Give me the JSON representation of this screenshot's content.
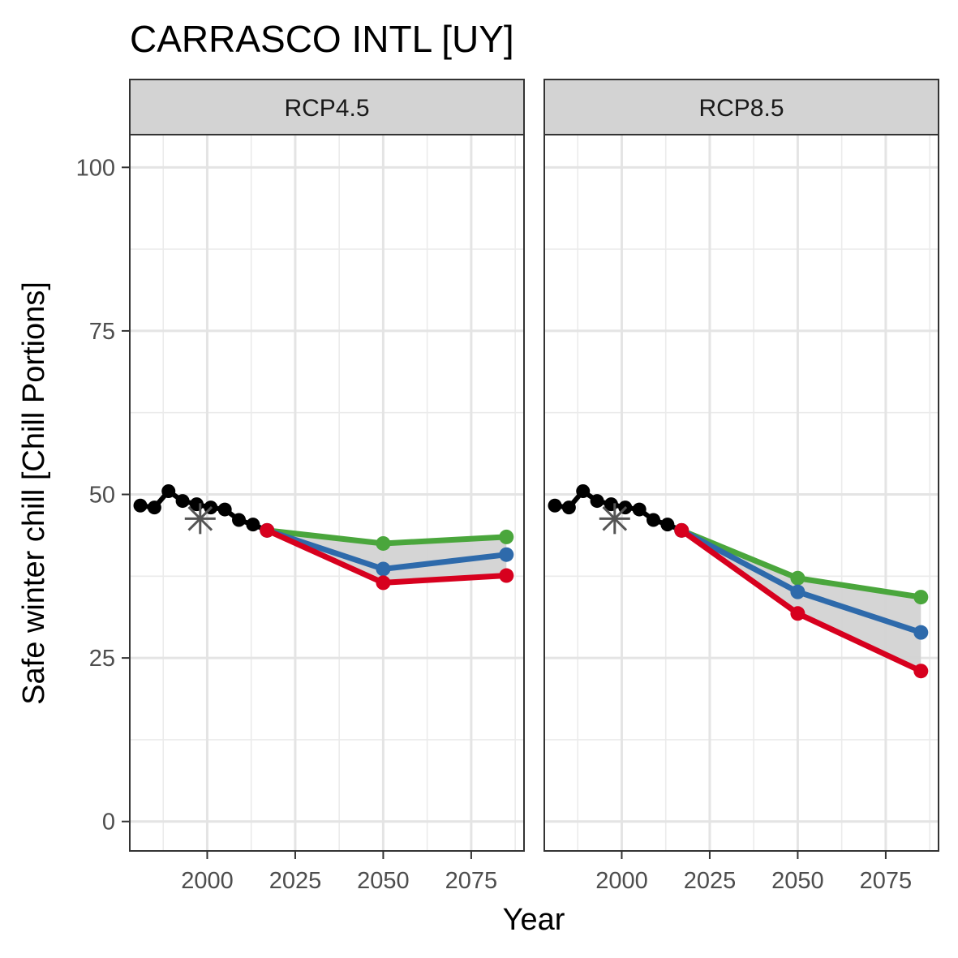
{
  "chart_data": {
    "type": "line",
    "title": "CARRASCO INTL [UY]",
    "xlabel": "Year",
    "ylabel": "Safe winter chill [Chill Portions]",
    "xlim": [
      1978,
      2090
    ],
    "ylim": [
      -4.5,
      105
    ],
    "x_ticks": [
      2000,
      2025,
      2050,
      2075
    ],
    "y_ticks": [
      0,
      25,
      50,
      75,
      100
    ],
    "grid": true,
    "colors": {
      "historic": "#000000",
      "optimistic": "#4aa63c",
      "intermediate": "#2e6aab",
      "pessimistic": "#d7001e",
      "band": "#d3d3d3",
      "reference": "#555555"
    },
    "panels": [
      {
        "label": "RCP4.5",
        "historic": {
          "x": [
            1981,
            1985,
            1989,
            1993,
            1997,
            2001,
            2005,
            2009,
            2013,
            2017
          ],
          "y": [
            48.3,
            48.0,
            50.5,
            49.0,
            48.5,
            48.0,
            47.7,
            46.1,
            45.4,
            44.5
          ]
        },
        "reference_point": {
          "x": 1998,
          "y": 46.3
        },
        "future": {
          "x": [
            2017,
            2050,
            2085
          ],
          "optimistic": [
            44.5,
            42.5,
            43.5
          ],
          "intermediate": [
            44.5,
            38.6,
            40.8
          ],
          "pessimistic": [
            44.5,
            36.5,
            37.6
          ]
        }
      },
      {
        "label": "RCP8.5",
        "historic": {
          "x": [
            1981,
            1985,
            1989,
            1993,
            1997,
            2001,
            2005,
            2009,
            2013,
            2017
          ],
          "y": [
            48.3,
            48.0,
            50.5,
            49.0,
            48.5,
            48.0,
            47.7,
            46.1,
            45.4,
            44.5
          ]
        },
        "reference_point": {
          "x": 1998,
          "y": 46.3
        },
        "future": {
          "x": [
            2017,
            2050,
            2085
          ],
          "optimistic": [
            44.5,
            37.2,
            34.3
          ],
          "intermediate": [
            44.5,
            35.1,
            28.9
          ],
          "pessimistic": [
            44.5,
            31.8,
            23.0
          ]
        }
      }
    ]
  }
}
